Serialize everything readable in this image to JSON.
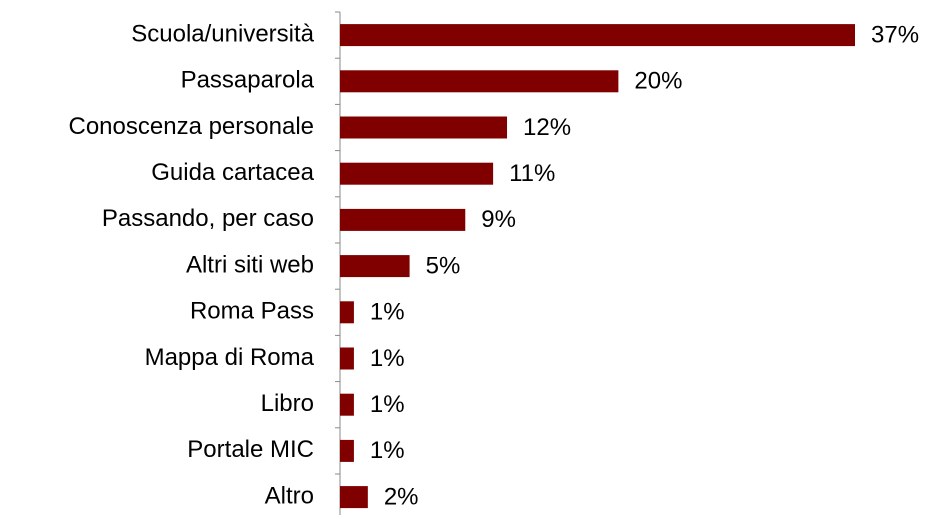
{
  "chart_data": {
    "type": "bar",
    "orientation": "horizontal",
    "categories": [
      "Scuola/università",
      "Passaparola",
      "Conoscenza personale",
      "Guida cartacea",
      "Passando, per caso",
      "Altri siti web",
      "Roma Pass",
      "Mappa di Roma",
      "Libro",
      "Portale MIC",
      "Altro"
    ],
    "values": [
      37,
      20,
      12,
      11,
      9,
      5,
      1,
      1,
      1,
      1,
      2
    ],
    "value_labels": [
      "37%",
      "20%",
      "12%",
      "11%",
      "9%",
      "5%",
      "1%",
      "1%",
      "1%",
      "1%",
      "2%"
    ],
    "color": "#800000"
  }
}
